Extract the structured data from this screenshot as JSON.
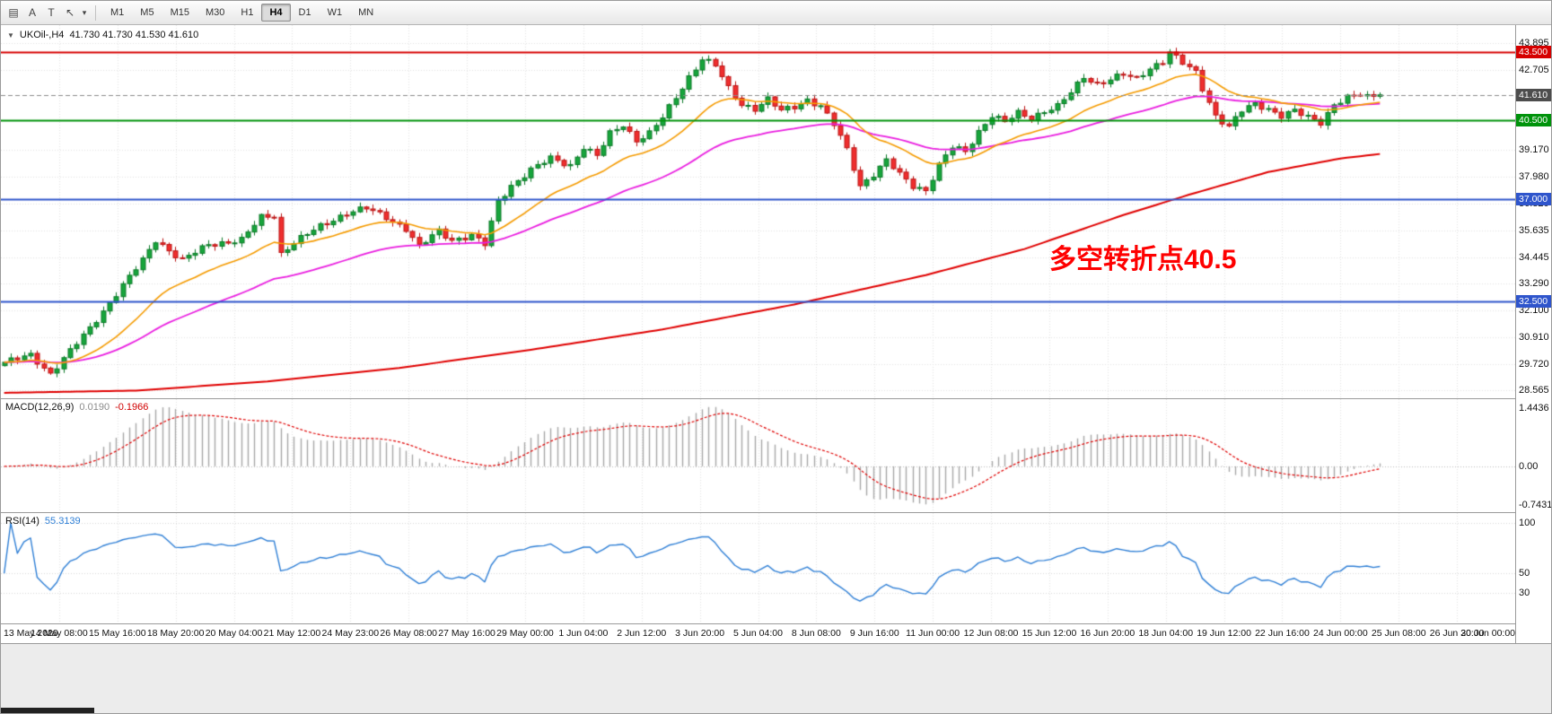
{
  "toolbar": {
    "icons": [
      {
        "name": "chart-window-icon",
        "glyph": "▤"
      },
      {
        "name": "label-tool-icon",
        "glyph": "A"
      },
      {
        "name": "text-tool-icon",
        "glyph": "T"
      },
      {
        "name": "arrow-draw-tool-icon",
        "glyph": "↖"
      },
      {
        "name": "draw-tools-caret-icon",
        "glyph": "▾"
      }
    ],
    "timeframes": [
      "M1",
      "M5",
      "M15",
      "M30",
      "H1",
      "H4",
      "D1",
      "W1",
      "MN"
    ],
    "active_timeframe": "H4"
  },
  "main_chart": {
    "caret": "▼",
    "header_symbol": "UKOil-,H4",
    "header_ohlc": "41.730 41.730 41.530 41.610",
    "annotation": "多空转折点40.5",
    "price_range": [
      28.21,
      44.69
    ],
    "price_axis_plain": [
      43.895,
      42.705,
      39.17,
      37.98,
      36.82,
      35.635,
      34.445,
      33.29,
      32.1,
      30.91,
      29.72,
      28.565
    ],
    "price_badges": [
      {
        "text": "43.500",
        "price": 43.5,
        "color": "#d60000"
      },
      {
        "text": "41.610",
        "price": 41.61,
        "color": "#4d4d4d"
      },
      {
        "text": "40.500",
        "price": 40.5,
        "color": "#00930b"
      },
      {
        "text": "37.000",
        "price": 37.0,
        "color": "#2f55cc"
      },
      {
        "text": "32.500",
        "price": 32.5,
        "color": "#2f55cc"
      }
    ],
    "hlines": [
      {
        "price": 43.5,
        "color": "#d60000",
        "style": "solid"
      },
      {
        "price": 40.5,
        "color": "#00930b",
        "style": "solid"
      },
      {
        "price": 37.0,
        "color": "#2f55cc",
        "style": "solid"
      },
      {
        "price": 32.5,
        "color": "#2f55cc",
        "style": "solid"
      },
      {
        "price": 41.61,
        "color": "#8a8a8a",
        "style": "dash"
      }
    ],
    "colors": {
      "candle_up": "#17a53c",
      "candle_up_border": "#0c7a28",
      "candle_down": "#ef2e2e",
      "candle_down_border": "#bb1515",
      "ma_orange": "#f59b00",
      "ma_magenta": "#ea1fe0",
      "ma_slow_red": "#e00000",
      "grid": "#e3e3e3"
    }
  },
  "macd_panel": {
    "name": "MACD(12,26,9)",
    "value_main": "0.0190",
    "value_signal": "-0.1966",
    "axis": [
      "1.4436",
      "0.00",
      "-0.7431"
    ],
    "hist_color": "#a8a8a8",
    "signal_color": "#e00000"
  },
  "rsi_panel": {
    "name": "RSI(14)",
    "value": "55.3139",
    "axis": [
      100,
      50,
      30
    ],
    "line_color": "#2e7fd6"
  },
  "time_axis": {
    "labels": [
      "13 May 2020",
      "14 May 08:00",
      "15 May 16:00",
      "18 May 20:00",
      "20 May 04:00",
      "21 May 12:00",
      "24 May 23:00",
      "26 May 08:00",
      "27 May 16:00",
      "29 May 00:00",
      "1 Jun 04:00",
      "2 Jun 12:00",
      "3 Jun 20:00",
      "5 Jun 04:00",
      "8 Jun 08:00",
      "9 Jun 16:00",
      "11 Jun 00:00",
      "12 Jun 08:00",
      "15 Jun 12:00",
      "16 Jun 20:00",
      "18 Jun 04:00",
      "19 Jun 12:00",
      "22 Jun 16:00",
      "24 Jun 00:00",
      "25 Jun 08:00",
      "26 Jun 20:00",
      "30 Jun 00:00"
    ]
  },
  "chart_data": {
    "type": "candlestick",
    "symbol": "UKOil-",
    "timeframe": "H4",
    "count": 210,
    "last_close": 41.61,
    "ylim": [
      28.21,
      44.69
    ],
    "close_anchors": [
      [
        0,
        29.8
      ],
      [
        4,
        30.1
      ],
      [
        7,
        29.3
      ],
      [
        13,
        31.3
      ],
      [
        18,
        33.2
      ],
      [
        21,
        34.3
      ],
      [
        23,
        35.2
      ],
      [
        27,
        34.3
      ],
      [
        31,
        35.0
      ],
      [
        36,
        35.2
      ],
      [
        39,
        36.2
      ],
      [
        41,
        36.3
      ],
      [
        42,
        34.6
      ],
      [
        44,
        35.1
      ],
      [
        48,
        35.8
      ],
      [
        52,
        36.4
      ],
      [
        55,
        36.6
      ],
      [
        58,
        36.2
      ],
      [
        61,
        35.7
      ],
      [
        63,
        34.9
      ],
      [
        66,
        35.6
      ],
      [
        68,
        35.2
      ],
      [
        71,
        35.4
      ],
      [
        73,
        35.0
      ],
      [
        75,
        36.9
      ],
      [
        77,
        37.6
      ],
      [
        80,
        38.3
      ],
      [
        83,
        38.8
      ],
      [
        86,
        38.5
      ],
      [
        88,
        39.3
      ],
      [
        90,
        38.9
      ],
      [
        92,
        39.9
      ],
      [
        94,
        40.3
      ],
      [
        96,
        39.6
      ],
      [
        98,
        39.9
      ],
      [
        100,
        40.6
      ],
      [
        102,
        41.5
      ],
      [
        104,
        42.4
      ],
      [
        106,
        43.2
      ],
      [
        108,
        42.9
      ],
      [
        110,
        41.9
      ],
      [
        112,
        41.2
      ],
      [
        114,
        41.0
      ],
      [
        116,
        41.4
      ],
      [
        118,
        40.9
      ],
      [
        120,
        41.1
      ],
      [
        122,
        41.4
      ],
      [
        124,
        41.1
      ],
      [
        126,
        40.3
      ],
      [
        128,
        39.2
      ],
      [
        130,
        37.6
      ],
      [
        132,
        38.1
      ],
      [
        134,
        38.7
      ],
      [
        136,
        38.1
      ],
      [
        138,
        37.6
      ],
      [
        140,
        37.4
      ],
      [
        142,
        38.5
      ],
      [
        144,
        39.3
      ],
      [
        146,
        39.1
      ],
      [
        148,
        40.0
      ],
      [
        150,
        40.7
      ],
      [
        152,
        40.4
      ],
      [
        154,
        40.8
      ],
      [
        156,
        40.6
      ],
      [
        158,
        40.9
      ],
      [
        160,
        41.1
      ],
      [
        162,
        41.7
      ],
      [
        164,
        42.4
      ],
      [
        166,
        42.1
      ],
      [
        168,
        42.3
      ],
      [
        170,
        42.5
      ],
      [
        172,
        42.3
      ],
      [
        174,
        42.8
      ],
      [
        176,
        43.1
      ],
      [
        177,
        43.5
      ],
      [
        179,
        43.0
      ],
      [
        181,
        42.6
      ],
      [
        182,
        41.9
      ],
      [
        184,
        40.7
      ],
      [
        186,
        40.2
      ],
      [
        188,
        40.9
      ],
      [
        190,
        41.2
      ],
      [
        192,
        41.0
      ],
      [
        194,
        40.7
      ],
      [
        196,
        40.9
      ],
      [
        198,
        40.6
      ],
      [
        200,
        40.4
      ],
      [
        202,
        41.2
      ],
      [
        204,
        41.5
      ],
      [
        206,
        41.6
      ],
      [
        207,
        41.5
      ],
      [
        209,
        41.61
      ]
    ],
    "slow_ma_anchors": [
      [
        0,
        28.45
      ],
      [
        20,
        28.55
      ],
      [
        40,
        28.95
      ],
      [
        60,
        29.55
      ],
      [
        80,
        30.35
      ],
      [
        100,
        31.25
      ],
      [
        120,
        32.35
      ],
      [
        140,
        33.65
      ],
      [
        155,
        34.8
      ],
      [
        170,
        36.3
      ],
      [
        180,
        37.2
      ],
      [
        192,
        38.2
      ],
      [
        203,
        38.8
      ],
      [
        209,
        39.0
      ]
    ],
    "orange_ma_period": 18,
    "magenta_ma_period": 45,
    "macd_params": {
      "fast": 12,
      "slow": 26,
      "signal": 9
    },
    "rsi_period": 14
  }
}
